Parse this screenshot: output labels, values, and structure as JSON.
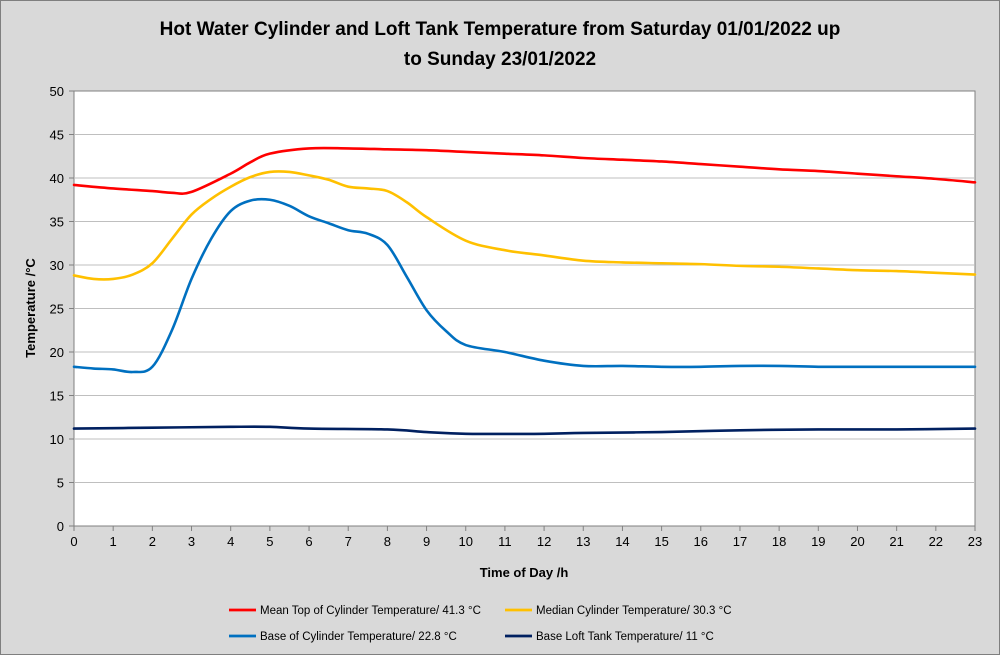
{
  "chart_data": {
    "type": "line",
    "title_lines": [
      "Hot Water Cylinder and Loft Tank Temperature from Saturday 01/01/2022 up",
      "to Sunday 23/01/2022"
    ],
    "xlabel": "Time of Day /h",
    "ylabel": "Temperature /°C",
    "xlim": [
      0,
      23
    ],
    "ylim": [
      0,
      50
    ],
    "x_ticks": [
      0,
      1,
      2,
      3,
      4,
      5,
      6,
      7,
      8,
      9,
      10,
      11,
      12,
      13,
      14,
      15,
      16,
      17,
      18,
      19,
      20,
      21,
      22,
      23
    ],
    "y_ticks": [
      0,
      5,
      10,
      15,
      20,
      25,
      30,
      35,
      40,
      45,
      50
    ],
    "grid": "horizontal",
    "legend_position": "bottom",
    "series": [
      {
        "name": "Mean Top of Cylinder Temperature/ 41.3 °C",
        "color": "#ff0000",
        "points": [
          [
            0,
            39.2
          ],
          [
            1,
            38.8
          ],
          [
            2,
            38.5
          ],
          [
            2.5,
            38.3
          ],
          [
            3,
            38.4
          ],
          [
            4,
            40.5
          ],
          [
            4.5,
            41.8
          ],
          [
            5,
            42.8
          ],
          [
            6,
            43.4
          ],
          [
            7,
            43.4
          ],
          [
            8,
            43.3
          ],
          [
            9,
            43.2
          ],
          [
            10,
            43.0
          ],
          [
            11,
            42.8
          ],
          [
            12,
            42.6
          ],
          [
            13,
            42.3
          ],
          [
            14,
            42.1
          ],
          [
            15,
            41.9
          ],
          [
            16,
            41.6
          ],
          [
            17,
            41.3
          ],
          [
            18,
            41.0
          ],
          [
            19,
            40.8
          ],
          [
            20,
            40.5
          ],
          [
            21,
            40.2
          ],
          [
            22,
            39.9
          ],
          [
            23,
            39.5
          ]
        ]
      },
      {
        "name": "Median Cylinder Temperature/ 30.3 °C",
        "color": "#ffc000",
        "points": [
          [
            0,
            28.8
          ],
          [
            0.5,
            28.4
          ],
          [
            1,
            28.4
          ],
          [
            1.5,
            28.9
          ],
          [
            2,
            30.2
          ],
          [
            2.5,
            33.0
          ],
          [
            3,
            35.8
          ],
          [
            3.5,
            37.6
          ],
          [
            4,
            39.0
          ],
          [
            4.5,
            40.1
          ],
          [
            5,
            40.7
          ],
          [
            5.5,
            40.7
          ],
          [
            6,
            40.3
          ],
          [
            6.5,
            39.8
          ],
          [
            7,
            39.0
          ],
          [
            7.5,
            38.8
          ],
          [
            8,
            38.5
          ],
          [
            8.5,
            37.2
          ],
          [
            9,
            35.5
          ],
          [
            10,
            32.8
          ],
          [
            11,
            31.7
          ],
          [
            12,
            31.1
          ],
          [
            13,
            30.5
          ],
          [
            14,
            30.3
          ],
          [
            15,
            30.2
          ],
          [
            16,
            30.1
          ],
          [
            17,
            29.9
          ],
          [
            18,
            29.8
          ],
          [
            19,
            29.6
          ],
          [
            20,
            29.4
          ],
          [
            21,
            29.3
          ],
          [
            22,
            29.1
          ],
          [
            23,
            28.9
          ]
        ]
      },
      {
        "name": "Base of Cylinder Temperature/ 22.8 °C",
        "color": "#0070c0",
        "points": [
          [
            0,
            18.3
          ],
          [
            0.5,
            18.1
          ],
          [
            1,
            18.0
          ],
          [
            1.5,
            17.7
          ],
          [
            2,
            18.3
          ],
          [
            2.5,
            22.5
          ],
          [
            3,
            28.4
          ],
          [
            3.5,
            33.0
          ],
          [
            4,
            36.2
          ],
          [
            4.5,
            37.4
          ],
          [
            5,
            37.5
          ],
          [
            5.5,
            36.8
          ],
          [
            6,
            35.6
          ],
          [
            6.5,
            34.8
          ],
          [
            7,
            34.0
          ],
          [
            7.5,
            33.6
          ],
          [
            8,
            32.3
          ],
          [
            8.5,
            28.6
          ],
          [
            9,
            24.8
          ],
          [
            9.5,
            22.4
          ],
          [
            10,
            20.8
          ],
          [
            11,
            20.0
          ],
          [
            12,
            19.0
          ],
          [
            13,
            18.4
          ],
          [
            14,
            18.4
          ],
          [
            15,
            18.3
          ],
          [
            16,
            18.3
          ],
          [
            17,
            18.4
          ],
          [
            18,
            18.4
          ],
          [
            19,
            18.3
          ],
          [
            20,
            18.3
          ],
          [
            21,
            18.3
          ],
          [
            22,
            18.3
          ],
          [
            23,
            18.3
          ]
        ]
      },
      {
        "name": "Base Loft Tank Temperature/ 11 °C",
        "color": "#002060",
        "points": [
          [
            0,
            11.2
          ],
          [
            2,
            11.3
          ],
          [
            4,
            11.4
          ],
          [
            5,
            11.4
          ],
          [
            6,
            11.2
          ],
          [
            8,
            11.1
          ],
          [
            9,
            10.8
          ],
          [
            10,
            10.6
          ],
          [
            12,
            10.6
          ],
          [
            13,
            10.7
          ],
          [
            15,
            10.8
          ],
          [
            17,
            11.0
          ],
          [
            19,
            11.1
          ],
          [
            21,
            11.1
          ],
          [
            23,
            11.2
          ]
        ]
      }
    ]
  }
}
